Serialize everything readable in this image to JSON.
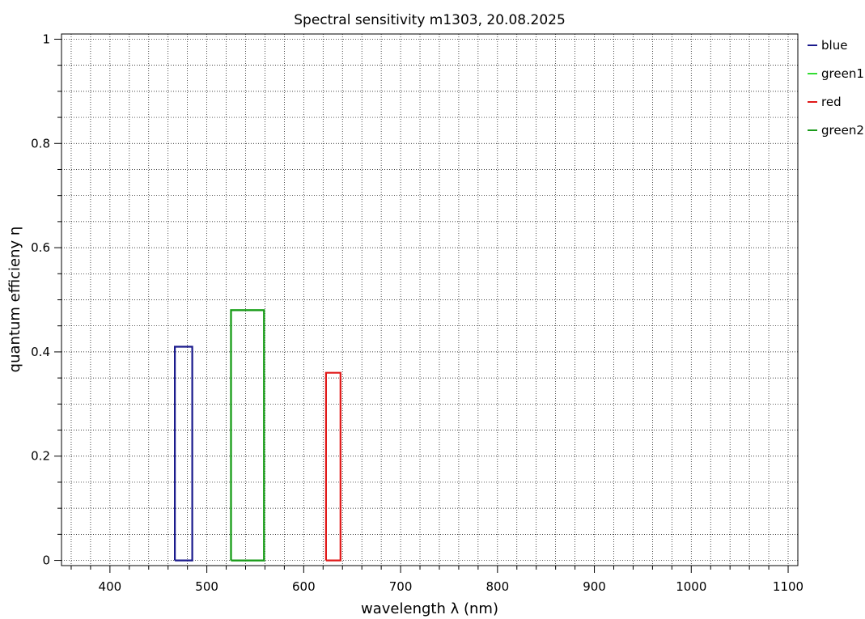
{
  "chart_data": {
    "type": "line",
    "title": "Spectral sensitivity m1303, 20.08.2025",
    "xlabel": "wavelength λ (nm)",
    "ylabel": "quantum efficieny η",
    "xlim": [
      350,
      1110
    ],
    "ylim": [
      -0.01,
      1.01
    ],
    "x_ticks": [
      400,
      500,
      600,
      700,
      800,
      900,
      1000,
      1100
    ],
    "y_ticks": [
      0,
      0.2,
      0.4,
      0.6,
      0.8,
      1
    ],
    "x_tick_labels": [
      "400",
      "500",
      "600",
      "700",
      "800",
      "900",
      "1000",
      "1100"
    ],
    "y_tick_labels": [
      "0",
      "0.2",
      "0.4",
      "0.6",
      "0.8",
      "1"
    ],
    "grid": true,
    "legend_position": "right",
    "series": [
      {
        "name": "blue",
        "color": "#1a1a8c",
        "x": [
          467,
          467,
          485,
          485,
          467
        ],
        "y": [
          0,
          0.41,
          0.41,
          0,
          0
        ]
      },
      {
        "name": "green1",
        "color": "#33dd33",
        "x": [
          525,
          525,
          559,
          559,
          525
        ],
        "y": [
          0,
          0.48,
          0.48,
          0,
          0
        ]
      },
      {
        "name": "red",
        "color": "#e01818",
        "x": [
          623,
          623,
          638,
          638,
          623
        ],
        "y": [
          0,
          0.36,
          0.36,
          0,
          0
        ]
      },
      {
        "name": "green2",
        "color": "#1a9a1a",
        "x": [
          525,
          525,
          559,
          559,
          525
        ],
        "y": [
          0,
          0.48,
          0.48,
          0,
          0
        ]
      }
    ]
  }
}
